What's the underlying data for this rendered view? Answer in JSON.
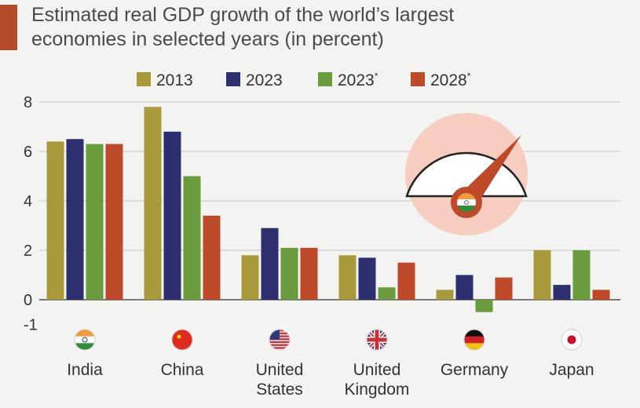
{
  "title_lines": [
    "Estimated real GDP growth of the world’s largest",
    "economies in selected years (in percent)"
  ],
  "colors": {
    "accent": "#b34a2a",
    "series": [
      "#a89a3a",
      "#2e2f6e",
      "#6a9b3c",
      "#bf4a2a"
    ],
    "gridline": "#cfcfcf",
    "gauge_background": "#f6cdbf",
    "needle": "#bf4a2a"
  },
  "icons": {
    "gauge": "speedometer-icon",
    "flags": [
      "india-flag-icon",
      "china-flag-icon",
      "usa-flag-icon",
      "uk-flag-icon",
      "germany-flag-icon",
      "japan-flag-icon"
    ]
  },
  "chart_data": {
    "type": "bar",
    "categories": [
      [
        "India"
      ],
      [
        "China"
      ],
      [
        "United",
        "States"
      ],
      [
        "United",
        "Kingdom"
      ],
      [
        "Germany"
      ],
      [
        "Japan"
      ]
    ],
    "series": [
      {
        "name": "2013",
        "marker": "",
        "values": [
          6.4,
          7.8,
          1.8,
          1.8,
          0.4,
          2.0
        ]
      },
      {
        "name": "2023",
        "marker": "",
        "values": [
          6.5,
          6.8,
          2.9,
          1.7,
          1.0,
          0.6
        ]
      },
      {
        "name": "2023",
        "marker": "*",
        "values": [
          6.3,
          5.0,
          2.1,
          0.5,
          -0.5,
          2.0
        ]
      },
      {
        "name": "2028",
        "marker": "*",
        "values": [
          6.3,
          3.4,
          2.1,
          1.5,
          0.9,
          0.4
        ]
      }
    ],
    "y_ticks": [
      "8",
      "6",
      "4",
      "2",
      "0",
      "-1"
    ],
    "y_tick_values": [
      8,
      6,
      4,
      2,
      0,
      -1
    ],
    "ylim": [
      -1,
      8
    ],
    "grid": true,
    "legend_position": "top"
  }
}
